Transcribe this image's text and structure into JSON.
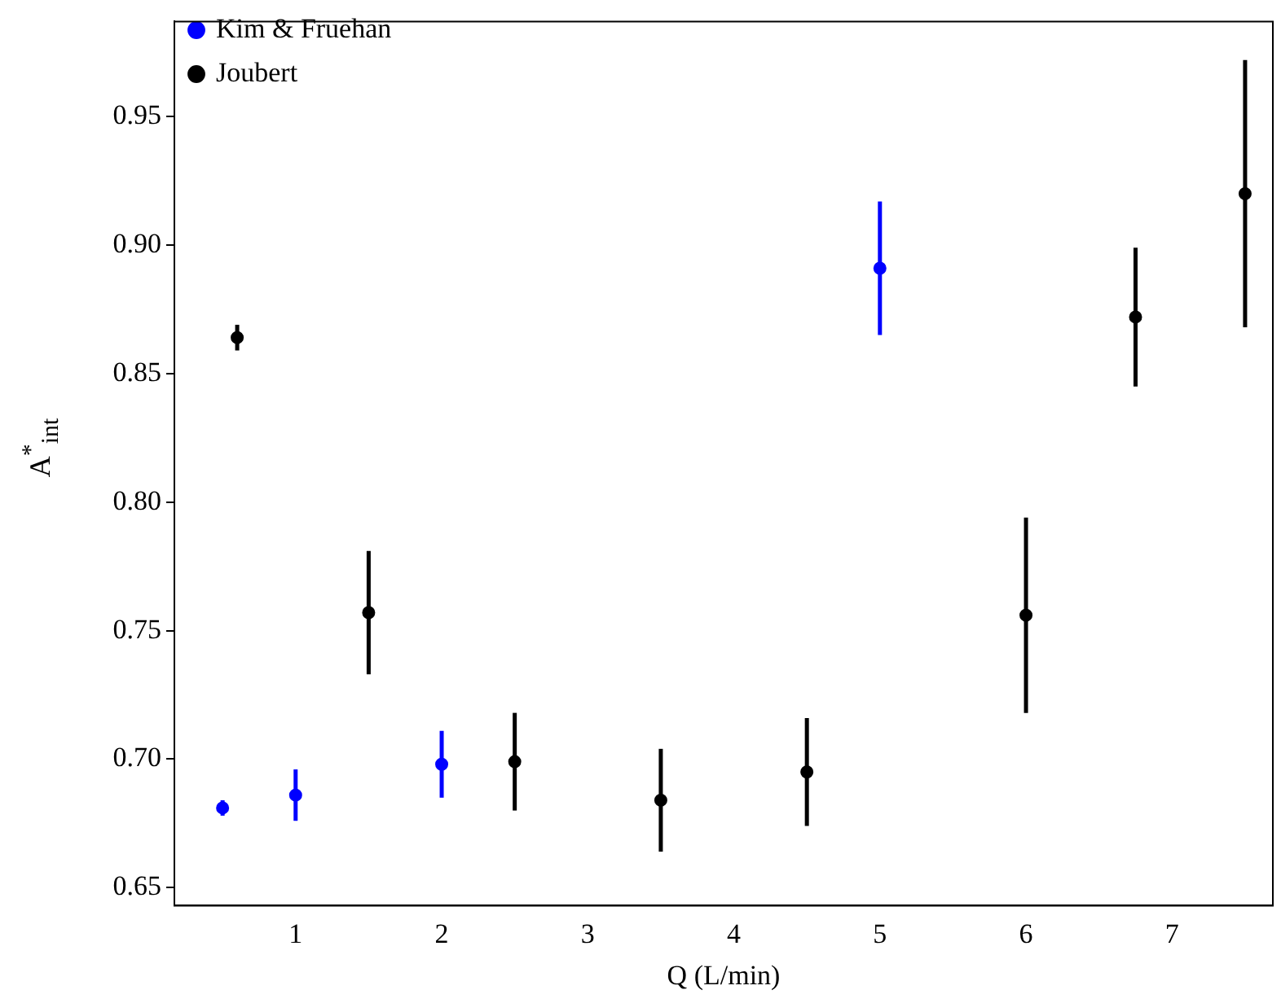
{
  "chart_data": {
    "type": "scatter",
    "xlabel": "Q (L/min)",
    "ylabel": "A$^{*}$$_{int}$",
    "series": [
      {
        "name": "Kim & Fruehan",
        "color": "#0000ff",
        "x": [
          0.5,
          1,
          2,
          5
        ],
        "values": [
          0.681,
          0.686,
          0.698,
          0.891
        ],
        "errors": [
          0.003,
          0.01,
          0.013,
          0.026
        ]
      },
      {
        "name": "Joubert",
        "color": "#000000",
        "x": [
          0.6,
          1.5,
          2.5,
          3.5,
          4.5,
          6,
          6.75,
          7.5
        ],
        "values": [
          0.864,
          0.757,
          0.699,
          0.684,
          0.695,
          0.756,
          0.872,
          0.92
        ],
        "errors": [
          0.005,
          0.024,
          0.019,
          0.02,
          0.021,
          0.038,
          0.027,
          0.052
        ]
      }
    ],
    "xlim": [
      0.17,
      7.69
    ],
    "xticks": [
      1,
      2,
      3,
      4,
      5,
      6,
      7
    ],
    "ylim": [
      0.643,
      0.987
    ],
    "yticks": [
      {
        "value": 0.65,
        "label": "0.65"
      },
      {
        "value": 0.7,
        "label": "0.70"
      },
      {
        "value": 0.75,
        "label": "0.75"
      },
      {
        "value": 0.8,
        "label": "0.80"
      },
      {
        "value": 0.85,
        "label": "0.85"
      },
      {
        "value": 0.9,
        "label": "0.90"
      },
      {
        "value": 0.95,
        "label": "0.95"
      }
    ],
    "grid": false,
    "legend": "top left",
    "marker": "circle"
  }
}
